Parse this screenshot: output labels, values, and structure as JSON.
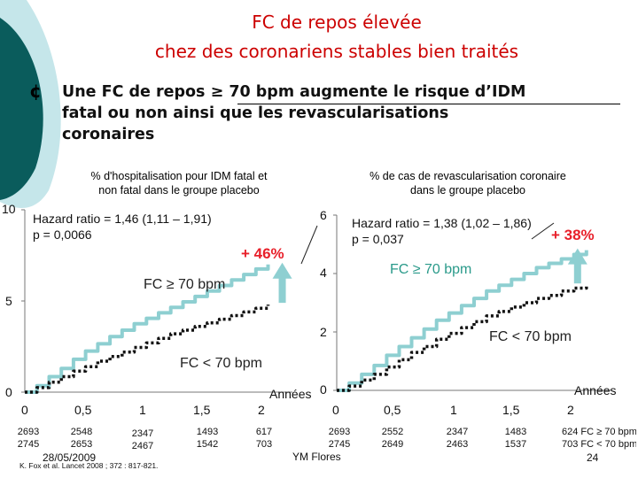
{
  "title": {
    "line1": "FC de repos élevée",
    "line2": "chez des coronariens stables bien traités"
  },
  "bullet": {
    "glyph": "¢",
    "line1": "Une FC de repos ≥ 70 bpm augmente le risque d’IDM",
    "line2": "fatal ou non ainsi que les revascularisations",
    "line3": "coronaires"
  },
  "colors": {
    "title": "#cc0000",
    "accent_red": "#e8202a",
    "curve_high": "#8ecfd1",
    "curve_low": "#111111",
    "arrow": "#8ecfd1",
    "deco_dark": "#0a5c5c",
    "deco_light": "#bfe3e8"
  },
  "chart_data": [
    {
      "type": "line",
      "caption_line1": "% d'hospitalisation pour IDM fatal et",
      "caption_line2": "non fatal dans le groupe placebo",
      "hr_line1": "Hazard ratio = 1,46 (1,11 – 1,91)",
      "hr_line2": "p = 0,0066",
      "increase_label": "+ 46%",
      "xlabel": "Années",
      "xlim": [
        0,
        2.2
      ],
      "ylim": [
        0,
        10
      ],
      "x_ticks": [
        "0",
        "0,5",
        "1",
        "1,5",
        "2"
      ],
      "y_ticks": [
        "0",
        "5",
        "10"
      ],
      "series": [
        {
          "name": "FC ≥ 70 bpm",
          "style": "solid",
          "x": [
            0,
            0.1,
            0.2,
            0.3,
            0.4,
            0.5,
            0.6,
            0.7,
            0.8,
            0.9,
            1.0,
            1.1,
            1.2,
            1.3,
            1.4,
            1.5,
            1.6,
            1.7,
            1.8,
            1.9,
            2.0
          ],
          "y": [
            0,
            0.35,
            0.85,
            1.3,
            1.8,
            2.25,
            2.65,
            3.05,
            3.4,
            3.75,
            4.05,
            4.35,
            4.65,
            4.95,
            5.25,
            5.55,
            5.85,
            6.15,
            6.45,
            6.75,
            7.0
          ]
        },
        {
          "name": "FC < 70 bpm",
          "style": "dotted",
          "x": [
            0,
            0.1,
            0.2,
            0.3,
            0.4,
            0.5,
            0.6,
            0.7,
            0.8,
            0.9,
            1.0,
            1.1,
            1.2,
            1.3,
            1.4,
            1.5,
            1.6,
            1.7,
            1.8,
            1.9,
            2.0
          ],
          "y": [
            0,
            0.25,
            0.55,
            0.85,
            1.15,
            1.4,
            1.7,
            1.95,
            2.2,
            2.45,
            2.7,
            2.95,
            3.2,
            3.4,
            3.6,
            3.8,
            4.0,
            4.2,
            4.4,
            4.6,
            4.8
          ]
        }
      ],
      "at_risk_top": [
        "2693",
        "2548",
        "2347",
        "1493",
        "617"
      ],
      "at_risk_bottom": [
        "2745",
        "2653",
        "2467",
        "1542",
        "703"
      ]
    },
    {
      "type": "line",
      "caption_line1": "% de cas de revascularisation coronaire",
      "caption_line2": "dans le groupe placebo",
      "hr_line1": "Hazard ratio = 1,38 (1,02 – 1,86)",
      "hr_line2": "p = 0,037",
      "increase_label": "+ 38%",
      "xlabel": "Années",
      "xlim": [
        0,
        2.2
      ],
      "ylim": [
        0,
        6
      ],
      "x_ticks": [
        "0",
        "0,5",
        "1",
        "1,5",
        "2"
      ],
      "y_ticks": [
        "0",
        "2",
        "4",
        "6"
      ],
      "series": [
        {
          "name": "FC ≥ 70 bpm",
          "style": "solid",
          "x": [
            0,
            0.1,
            0.2,
            0.3,
            0.4,
            0.5,
            0.6,
            0.7,
            0.8,
            0.9,
            1.0,
            1.1,
            1.2,
            1.3,
            1.4,
            1.5,
            1.6,
            1.7,
            1.8,
            1.9,
            2.0
          ],
          "y": [
            0,
            0.25,
            0.55,
            0.85,
            1.2,
            1.5,
            1.8,
            2.1,
            2.4,
            2.65,
            2.9,
            3.15,
            3.4,
            3.6,
            3.8,
            4.0,
            4.2,
            4.35,
            4.5,
            4.65,
            4.8
          ]
        },
        {
          "name": "FC < 70 bpm",
          "style": "dotted",
          "x": [
            0,
            0.1,
            0.2,
            0.3,
            0.4,
            0.5,
            0.6,
            0.7,
            0.8,
            0.9,
            1.0,
            1.1,
            1.2,
            1.3,
            1.4,
            1.5,
            1.6,
            1.7,
            1.8,
            1.9,
            2.0
          ],
          "y": [
            0,
            0.15,
            0.35,
            0.55,
            0.8,
            1.05,
            1.3,
            1.5,
            1.75,
            1.95,
            2.15,
            2.35,
            2.55,
            2.7,
            2.85,
            3.0,
            3.15,
            3.25,
            3.4,
            3.5,
            3.6
          ]
        }
      ],
      "at_risk_top": [
        "2693",
        "2552",
        "2347",
        "1483",
        "624 FC ≥ 70 bpm"
      ],
      "at_risk_bottom": [
        "2745",
        "2649",
        "2463",
        "1537",
        "703 FC < 70 bpm"
      ]
    }
  ],
  "footer": {
    "date": "28/05/2009",
    "reference": "K. Fox et al. Lancet 2008 ; 372 : 817-821.",
    "author": "YM Flores",
    "page": "24"
  }
}
